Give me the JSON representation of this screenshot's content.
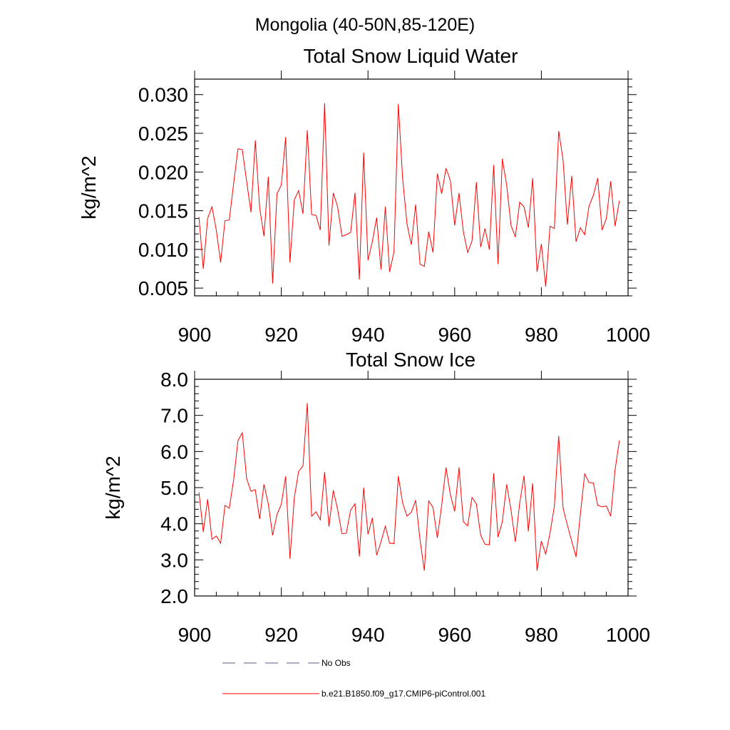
{
  "title": "Mongolia (40-50N,85-120E)",
  "colors": {
    "model": "#ff0000",
    "obs": "#5a5a8a",
    "axis": "#000000"
  },
  "legend": {
    "items": [
      {
        "label": "No Obs",
        "style": "dashed"
      },
      {
        "label": "b.e21.B1850.f09_g17.CMIP6-piControl.001",
        "style": "solid"
      }
    ]
  },
  "chart_data": [
    {
      "type": "line",
      "title": "Total Snow Liquid Water",
      "ylabel": "kg/m^2",
      "xlabel": "",
      "xlim": [
        900,
        1000
      ],
      "ylim": [
        0.004,
        0.032
      ],
      "xticks": [
        900,
        920,
        940,
        960,
        980,
        1000
      ],
      "yticks": [
        "0.005",
        "0.010",
        "0.015",
        "0.020",
        "0.025",
        "0.030"
      ],
      "grid": false,
      "series": [
        {
          "name": "b.e21.B1850.f09_g17.CMIP6-piControl.001",
          "x_start": 901,
          "values": [
            0.0142,
            0.0075,
            0.014,
            0.0155,
            0.0125,
            0.0083,
            0.0137,
            0.0138,
            0.0185,
            0.023,
            0.0229,
            0.0188,
            0.0148,
            0.0241,
            0.0154,
            0.0117,
            0.0194,
            0.0056,
            0.0172,
            0.0183,
            0.0245,
            0.0083,
            0.0164,
            0.0176,
            0.0146,
            0.0254,
            0.0145,
            0.0144,
            0.0125,
            0.0289,
            0.0105,
            0.0173,
            0.0155,
            0.0117,
            0.0119,
            0.0122,
            0.0173,
            0.0061,
            0.0225,
            0.0086,
            0.011,
            0.0141,
            0.0074,
            0.0155,
            0.0071,
            0.0097,
            0.0288,
            0.0191,
            0.0133,
            0.0106,
            0.0158,
            0.0081,
            0.0078,
            0.0123,
            0.0096,
            0.0198,
            0.0172,
            0.0205,
            0.0189,
            0.0131,
            0.0173,
            0.0123,
            0.0096,
            0.0111,
            0.0187,
            0.0103,
            0.0127,
            0.01,
            0.0209,
            0.0081,
            0.0217,
            0.0183,
            0.0131,
            0.0116,
            0.0161,
            0.0155,
            0.0128,
            0.0192,
            0.0071,
            0.0107,
            0.0052,
            0.013,
            0.0127,
            0.0253,
            0.0216,
            0.0132,
            0.0195,
            0.011,
            0.0128,
            0.0119,
            0.0156,
            0.017,
            0.0192,
            0.0125,
            0.014,
            0.0188,
            0.013,
            0.0163
          ]
        }
      ]
    },
    {
      "type": "line",
      "title": "Total Snow Ice",
      "ylabel": "kg/m^2",
      "xlabel": "",
      "xlim": [
        900,
        1000
      ],
      "ylim": [
        2.0,
        8.0
      ],
      "xticks": [
        900,
        920,
        940,
        960,
        980,
        1000
      ],
      "yticks": [
        "2.0",
        "3.0",
        "4.0",
        "5.0",
        "6.0",
        "7.0",
        "8.0"
      ],
      "grid": false,
      "series": [
        {
          "name": "b.e21.B1850.f09_g17.CMIP6-piControl.001",
          "x_start": 901,
          "values": [
            4.87,
            3.77,
            4.68,
            3.57,
            3.66,
            3.46,
            4.51,
            4.43,
            5.21,
            6.3,
            6.52,
            5.25,
            4.9,
            4.94,
            4.13,
            5.09,
            4.55,
            3.68,
            4.25,
            4.54,
            5.31,
            3.03,
            4.72,
            5.45,
            5.6,
            7.34,
            4.21,
            4.33,
            4.11,
            5.43,
            3.92,
            4.93,
            4.39,
            3.72,
            3.74,
            4.38,
            4.55,
            3.09,
            5.0,
            3.71,
            4.16,
            3.13,
            3.5,
            3.93,
            3.46,
            3.45,
            5.32,
            4.57,
            4.21,
            4.32,
            4.65,
            3.56,
            2.7,
            4.63,
            4.45,
            3.61,
            4.51,
            5.56,
            4.81,
            4.34,
            5.56,
            4.06,
            3.94,
            4.73,
            4.55,
            3.68,
            3.43,
            3.42,
            5.4,
            3.63,
            4.06,
            5.09,
            4.38,
            3.5,
            4.57,
            5.33,
            3.79,
            5.12,
            2.7,
            3.52,
            3.16,
            3.74,
            4.49,
            6.43,
            4.44,
            3.96,
            3.52,
            3.08,
            4.27,
            5.38,
            5.14,
            5.13,
            4.51,
            4.47,
            4.49,
            4.21,
            5.49,
            6.3
          ]
        }
      ]
    }
  ]
}
